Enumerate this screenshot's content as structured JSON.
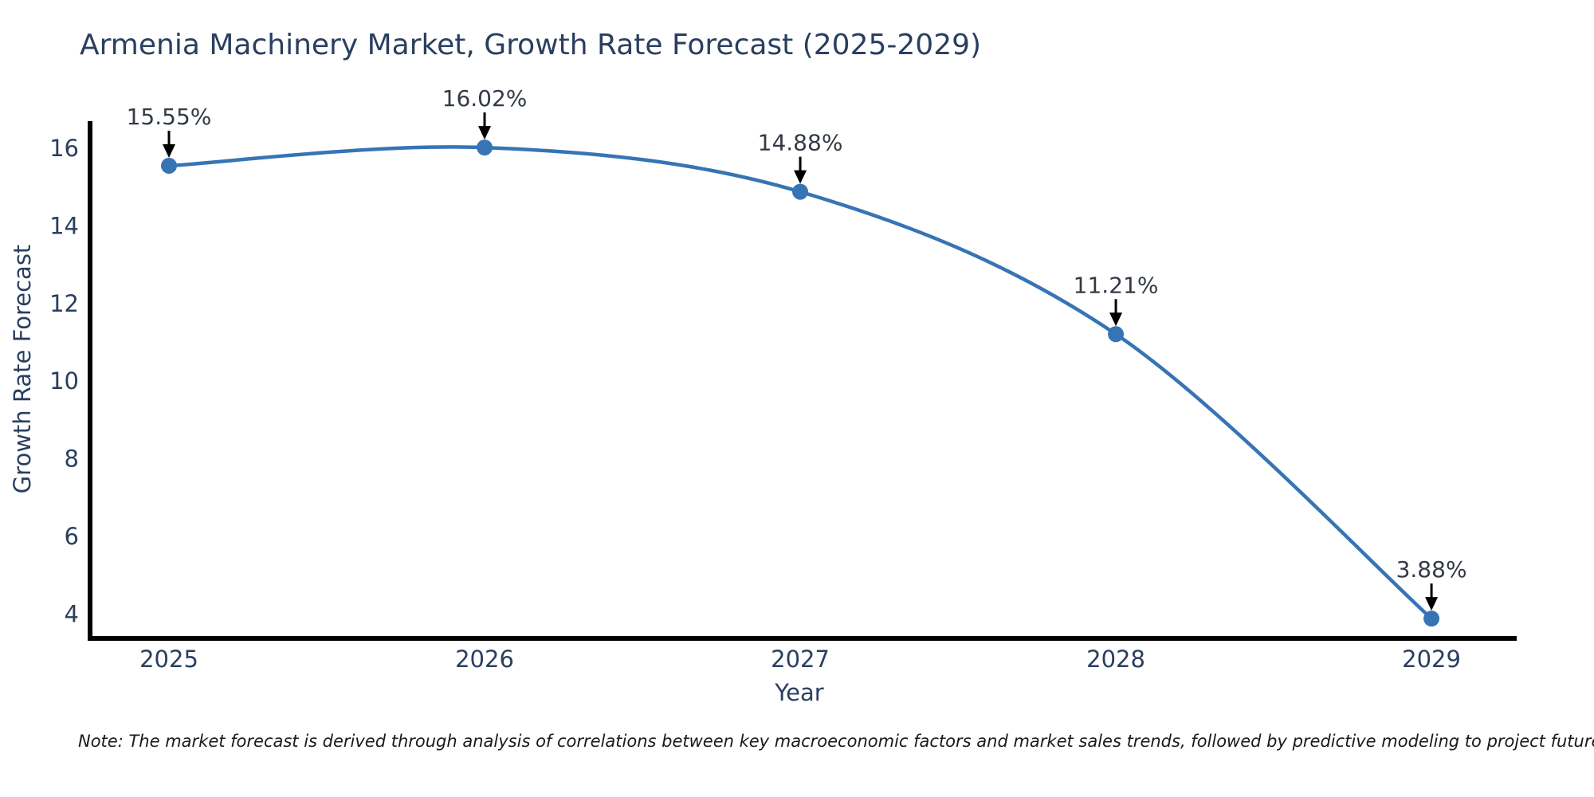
{
  "title": "Armenia Machinery Market, Growth Rate Forecast (2025-2029)",
  "note": "Note: The market forecast is derived through analysis of correlations between key macroeconomic factors and market sales trends, followed by predictive modeling to project future sales",
  "colors": {
    "line": "#3674b5",
    "marker": "#3674b5",
    "text": "#2a3f5f",
    "annotation_text": "#333a45",
    "axis": "#000000",
    "arrow": "#000000",
    "background": "#ffffff",
    "note_text": "#1a1a1a"
  },
  "chart_data": {
    "type": "line",
    "title": "Armenia Machinery Market, Growth Rate Forecast (2025-2029)",
    "xlabel": "Year",
    "ylabel": "Growth Rate Forecast",
    "x": [
      2025,
      2026,
      2027,
      2028,
      2029
    ],
    "values": [
      15.55,
      16.02,
      14.88,
      11.21,
      3.88
    ],
    "point_labels": [
      "15.55%",
      "16.02%",
      "14.88%",
      "11.21%",
      "3.88%"
    ],
    "x_tick_labels": [
      "2025",
      "2026",
      "2027",
      "2028",
      "2029"
    ],
    "y_ticks": [
      4,
      6,
      8,
      10,
      12,
      14,
      16
    ],
    "xlim": [
      2024.75,
      2029.27
    ],
    "ylim": [
      3.37,
      16.7
    ],
    "grid": false,
    "legend": false,
    "line_shape": "spline",
    "annotations": "value labels above each point with downward black arrows"
  }
}
